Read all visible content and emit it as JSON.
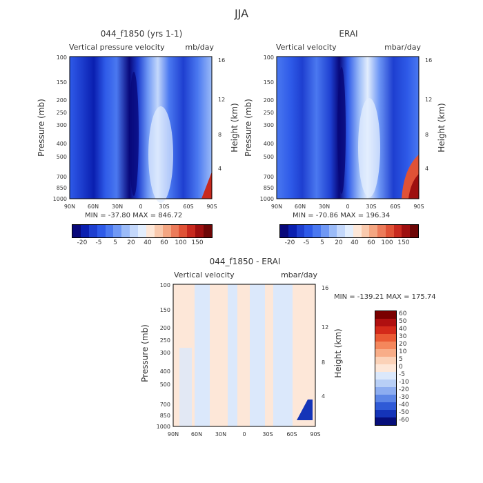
{
  "figure": {
    "title": "JJA"
  },
  "chart_data": [
    {
      "type": "heatmap",
      "title": "044_f1850 (yrs 1-1)",
      "subtitle_left": "Vertical pressure velocity",
      "subtitle_right": "mb/day",
      "xlabel": "",
      "ylabel": "Pressure (mb)",
      "y2label": "Height (km)",
      "x_ticks": [
        "90N",
        "60N",
        "30N",
        "0",
        "30S",
        "60S",
        "90S"
      ],
      "y_ticks": [
        "100",
        "150",
        "200",
        "250",
        "300",
        "400",
        "500",
        "700",
        "850",
        "1000"
      ],
      "y2_ticks": [
        "16",
        "12",
        "8",
        "4"
      ],
      "stats": "MIN = -37.80   MAX = 846.72",
      "colorbar_labels": [
        "-20",
        "-5",
        "5",
        "20",
        "40",
        "60",
        "100",
        "150"
      ],
      "colorbar_orientation": "horizontal"
    },
    {
      "type": "heatmap",
      "title": "ERAI",
      "subtitle_left": "Vertical velocity",
      "subtitle_right": "mbar/day",
      "xlabel": "",
      "ylabel": "Pressure (mb)",
      "y2label": "Height (km)",
      "x_ticks": [
        "90N",
        "60N",
        "30N",
        "0",
        "30S",
        "60S",
        "90S"
      ],
      "y_ticks": [
        "100",
        "150",
        "200",
        "250",
        "300",
        "400",
        "500",
        "700",
        "850",
        "1000"
      ],
      "y2_ticks": [
        "16",
        "12",
        "8",
        "4"
      ],
      "stats": "MIN = -70.86   MAX = 196.34",
      "colorbar_labels": [
        "-20",
        "-5",
        "5",
        "20",
        "40",
        "60",
        "100",
        "150"
      ],
      "colorbar_orientation": "horizontal"
    },
    {
      "type": "heatmap",
      "title": "044_f1850 - ERAI",
      "subtitle_left": "Vertical velocity",
      "subtitle_right": "mbar/day",
      "xlabel": "",
      "ylabel": "Pressure (mb)",
      "y2label": "Height (km)",
      "x_ticks": [
        "90N",
        "60N",
        "30N",
        "0",
        "30S",
        "60S",
        "90S"
      ],
      "y_ticks": [
        "100",
        "150",
        "200",
        "250",
        "300",
        "400",
        "500",
        "700",
        "850",
        "1000"
      ],
      "y2_ticks": [
        "16",
        "12",
        "8",
        "4"
      ],
      "stats": "MIN = -139.21   MAX = 175.74",
      "colorbar_labels": [
        "60",
        "50",
        "40",
        "30",
        "20",
        "10",
        "5",
        "0",
        "-5",
        "-10",
        "-20",
        "-30",
        "-40",
        "-50",
        "-60"
      ],
      "colorbar_orientation": "vertical"
    }
  ],
  "colors": {
    "sequential_scale": [
      "#08087a",
      "#0a1fb0",
      "#1e3fd0",
      "#2e5ae8",
      "#4a78f0",
      "#6f98f5",
      "#9bbbf8",
      "#c4d8fb",
      "#e3eefd",
      "#fde7d8",
      "#f9c9ad",
      "#f4a682",
      "#ec7b5a",
      "#e05236",
      "#c8291e",
      "#9e0f0f",
      "#6d0606"
    ],
    "diff_scale": [
      "#7a0000",
      "#b01010",
      "#d42a1a",
      "#ea5a34",
      "#f4875c",
      "#f8ad88",
      "#fbd2b8",
      "#fde7d8",
      "#dbe8fb",
      "#b8cff6",
      "#8dadf0",
      "#5d86e6",
      "#2f5ad6",
      "#1434b8",
      "#060e7a"
    ]
  }
}
